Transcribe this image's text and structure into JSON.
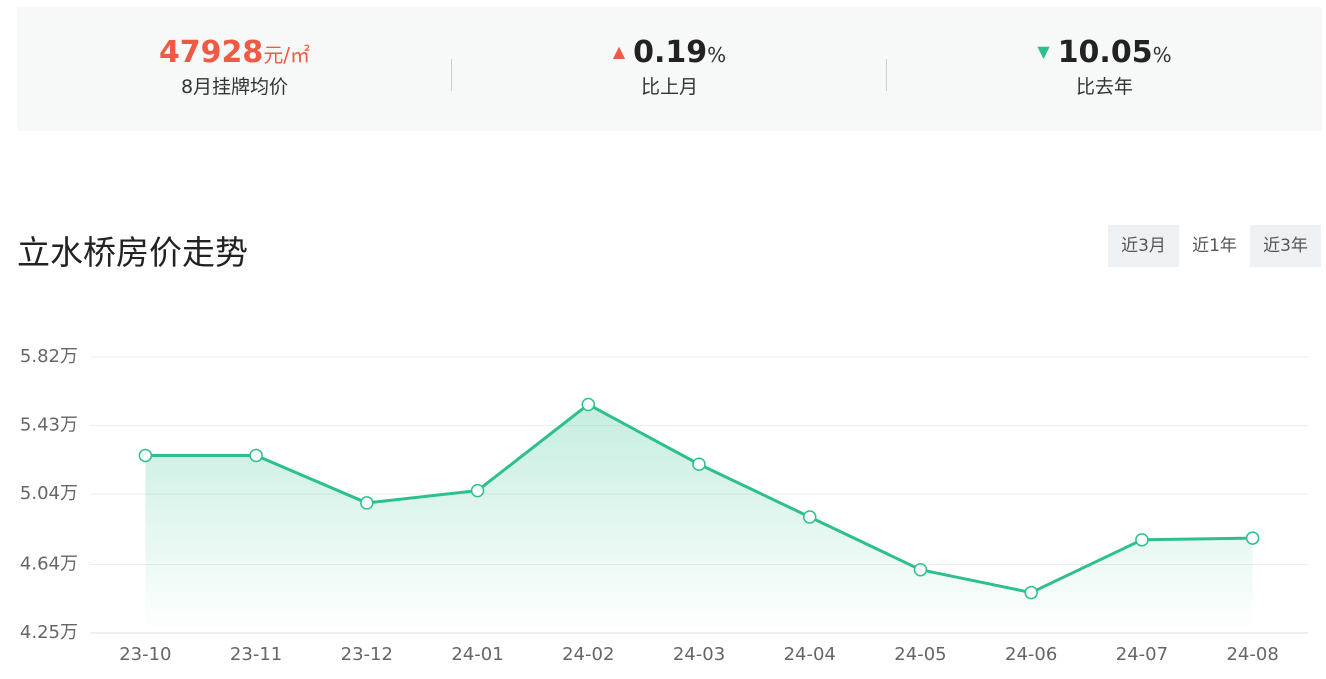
{
  "stats": [
    {
      "value": 47928,
      "unit": "元/㎡",
      "label": "8月挂牌均价"
    },
    {
      "value": 0.19,
      "unit": "%",
      "label": "比上月"
    },
    {
      "value": 10.05,
      "unit": "%",
      "label": "比去年"
    }
  ],
  "ranges": [
    "近3月",
    "近1年",
    "近3年"
  ],
  "chart_data": {
    "type": "line",
    "title": "立水桥房价走势",
    "categories": [
      "23-10",
      "23-11",
      "23-12",
      "24-01",
      "24-02",
      "24-03",
      "24-04",
      "24-05",
      "24-06",
      "24-07",
      "24-08"
    ],
    "values": [
      5.26,
      5.26,
      4.99,
      5.06,
      5.55,
      5.21,
      4.91,
      4.61,
      4.48,
      4.78,
      4.79
    ],
    "color": "#2dc08e",
    "ylim": [
      4.25,
      5.82
    ],
    "yticks": [
      {
        "value": 4.25,
        "label": "4.25万"
      },
      {
        "value": 4.64,
        "label": "4.64万"
      },
      {
        "value": 5.04,
        "label": "5.04万"
      },
      {
        "value": 5.43,
        "label": "5.43万"
      },
      {
        "value": 5.82,
        "label": "5.82万"
      }
    ],
    "grid": true
  }
}
